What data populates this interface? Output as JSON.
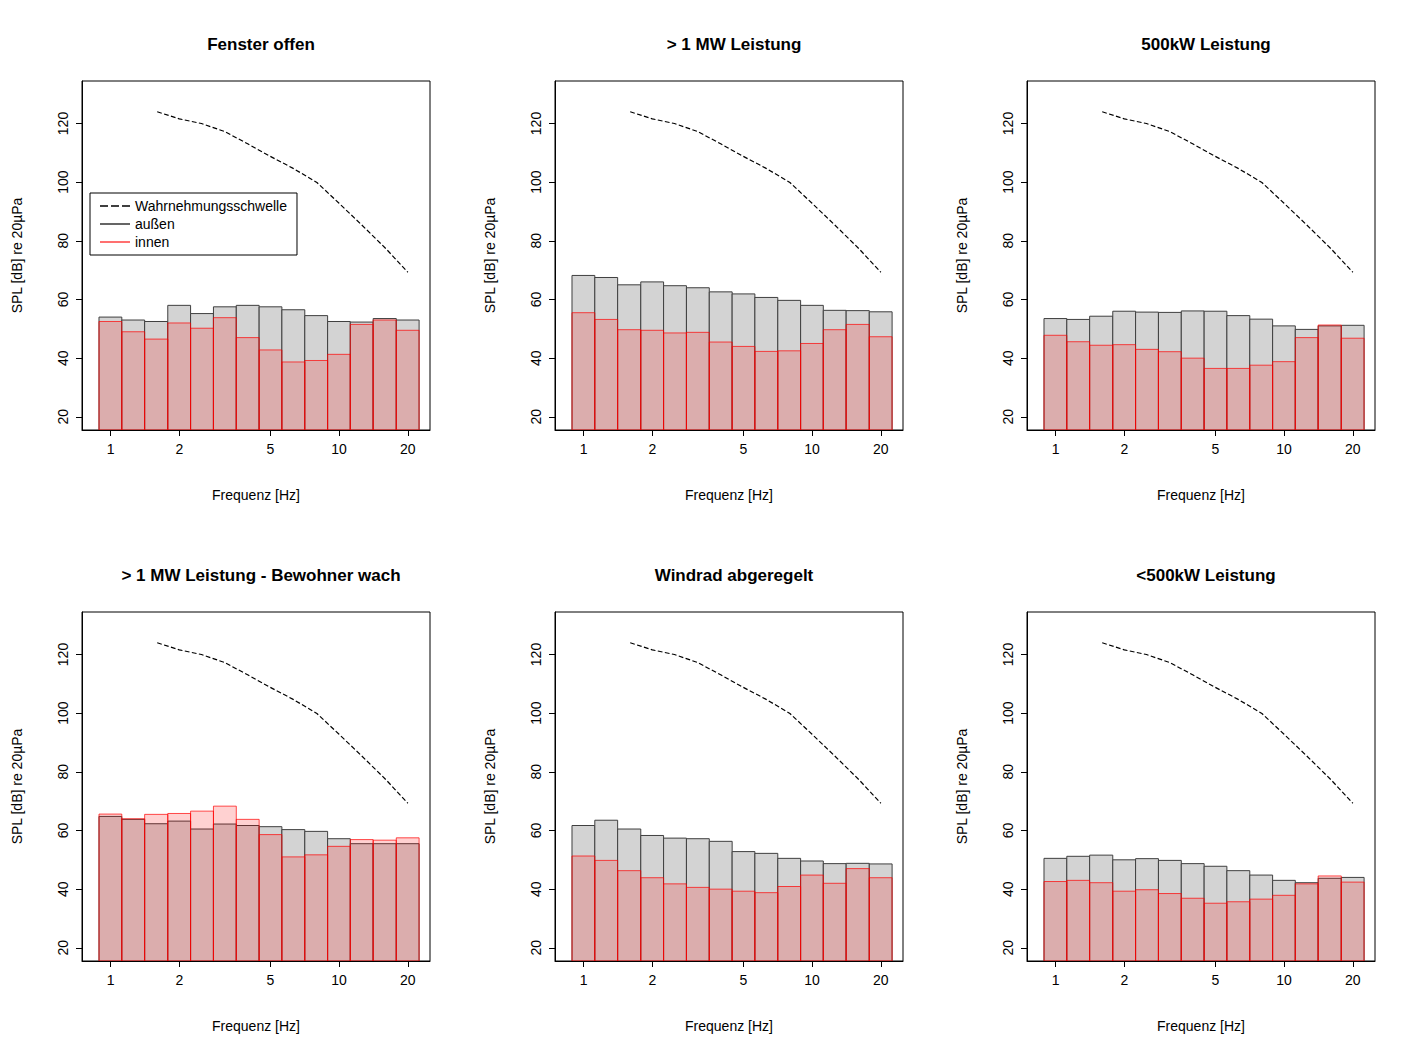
{
  "chart_data": [
    {
      "type": "histogram",
      "title": "Fenster offen",
      "xlabel": "Frequenz [Hz]",
      "ylabel": "SPL [dB] re 20µPa",
      "log": "x",
      "grid": false,
      "legend": "upper left",
      "xlim": [
        0.75,
        25
      ],
      "xticks": [
        1,
        2,
        5,
        10,
        20
      ],
      "ylim": [
        15.5,
        134.5
      ],
      "yticks": [
        20,
        40,
        60,
        80,
        100,
        120
      ],
      "bins": [
        0.89,
        1.12,
        1.41,
        1.78,
        2.24,
        2.82,
        3.55,
        4.47,
        5.62,
        7.08,
        8.91,
        11.2,
        14.1,
        17.8,
        22.4
      ],
      "series": [
        {
          "name": "Wahrnehmungsschwelle",
          "type": "line",
          "line_style": "dashed",
          "color": "#000000",
          "x": [
            1.6,
            2,
            2.5,
            3.15,
            4,
            5,
            6.3,
            8,
            10,
            12.5,
            16,
            20
          ],
          "values": [
            124,
            121.6,
            120,
            117.3,
            113,
            108.8,
            104.7,
            99.9,
            92.8,
            85.6,
            77.4,
            69.3
          ]
        },
        {
          "name": "außen",
          "type": "bar",
          "color": "#d3d3d3",
          "values": [
            54,
            53,
            52.5,
            58,
            55.2,
            57.5,
            58,
            57.5,
            56.5,
            54.5,
            52.5,
            52.3,
            53.5,
            53
          ]
        },
        {
          "name": "innen",
          "type": "bar",
          "color": "#ff0000",
          "values": [
            52.5,
            49,
            46.5,
            52,
            50.2,
            53.8,
            47,
            42.8,
            38.7,
            39.2,
            41.3,
            51.5,
            53,
            49.5
          ]
        }
      ]
    },
    {
      "type": "histogram",
      "title": "> 1 MW Leistung",
      "xlabel": "Frequenz [Hz]",
      "ylabel": "SPL [dB] re 20µPa",
      "log": "x",
      "grid": false,
      "xlim": [
        0.75,
        25
      ],
      "xticks": [
        1,
        2,
        5,
        10,
        20
      ],
      "ylim": [
        15.5,
        134.5
      ],
      "yticks": [
        20,
        40,
        60,
        80,
        100,
        120
      ],
      "bins": [
        0.89,
        1.12,
        1.41,
        1.78,
        2.24,
        2.82,
        3.55,
        4.47,
        5.62,
        7.08,
        8.91,
        11.2,
        14.1,
        17.8,
        22.4
      ],
      "series": [
        {
          "name": "Wahrnehmungsschwelle",
          "type": "line",
          "line_style": "dashed",
          "color": "#000000",
          "x": [
            1.6,
            2,
            2.5,
            3.15,
            4,
            5,
            6.3,
            8,
            10,
            12.5,
            16,
            20
          ],
          "values": [
            124,
            121.6,
            120,
            117.3,
            113,
            108.8,
            104.7,
            99.9,
            92.8,
            85.6,
            77.4,
            69.3
          ]
        },
        {
          "name": "außen",
          "type": "bar",
          "color": "#d3d3d3",
          "values": [
            68.2,
            67.5,
            65,
            66,
            64.7,
            64,
            62.6,
            61.9,
            60.7,
            59.7,
            58,
            56.3,
            56.2,
            55.8
          ]
        },
        {
          "name": "innen",
          "type": "bar",
          "color": "#ff0000",
          "values": [
            55.5,
            53.2,
            49.7,
            49.5,
            48.6,
            48.8,
            45.5,
            44,
            42.3,
            42.5,
            45,
            49.7,
            51.5,
            47.3
          ]
        }
      ]
    },
    {
      "type": "histogram",
      "title": "500kW Leistung",
      "xlabel": "Frequenz [Hz]",
      "ylabel": "SPL [dB] re 20µPa",
      "log": "x",
      "grid": false,
      "xlim": [
        0.75,
        25
      ],
      "xticks": [
        1,
        2,
        5,
        10,
        20
      ],
      "ylim": [
        15.5,
        134.5
      ],
      "yticks": [
        20,
        40,
        60,
        80,
        100,
        120
      ],
      "bins": [
        0.89,
        1.12,
        1.41,
        1.78,
        2.24,
        2.82,
        3.55,
        4.47,
        5.62,
        7.08,
        8.91,
        11.2,
        14.1,
        17.8,
        22.4
      ],
      "series": [
        {
          "name": "Wahrnehmungsschwelle",
          "type": "line",
          "line_style": "dashed",
          "color": "#000000",
          "x": [
            1.6,
            2,
            2.5,
            3.15,
            4,
            5,
            6.3,
            8,
            10,
            12.5,
            16,
            20
          ],
          "values": [
            124,
            121.6,
            120,
            117.3,
            113,
            108.8,
            104.7,
            99.9,
            92.8,
            85.6,
            77.4,
            69.3
          ]
        },
        {
          "name": "außen",
          "type": "bar",
          "color": "#d3d3d3",
          "values": [
            53.5,
            53.2,
            54.3,
            56,
            55.7,
            55.6,
            56.1,
            56,
            54.5,
            53.3,
            51,
            49.8,
            51,
            51.2
          ]
        },
        {
          "name": "innen",
          "type": "bar",
          "color": "#ff0000",
          "values": [
            47.8,
            45.6,
            44.4,
            44.6,
            43,
            42.2,
            40,
            36.5,
            36.5,
            37.6,
            38.8,
            47,
            51.3,
            46.8
          ]
        }
      ]
    },
    {
      "type": "histogram",
      "title": "> 1 MW Leistung - Bewohner wach",
      "xlabel": "Frequenz [Hz]",
      "ylabel": "SPL [dB] re 20µPa",
      "log": "x",
      "grid": false,
      "xlim": [
        0.75,
        25
      ],
      "xticks": [
        1,
        2,
        5,
        10,
        20
      ],
      "ylim": [
        15.5,
        134.5
      ],
      "yticks": [
        20,
        40,
        60,
        80,
        100,
        120
      ],
      "bins": [
        0.89,
        1.12,
        1.41,
        1.78,
        2.24,
        2.82,
        3.55,
        4.47,
        5.62,
        7.08,
        8.91,
        11.2,
        14.1,
        17.8,
        22.4
      ],
      "series": [
        {
          "name": "Wahrnehmungsschwelle",
          "type": "line",
          "line_style": "dashed",
          "color": "#000000",
          "x": [
            1.6,
            2,
            2.5,
            3.15,
            4,
            5,
            6.3,
            8,
            10,
            12.5,
            16,
            20
          ],
          "values": [
            124,
            121.6,
            120,
            117.3,
            113,
            108.8,
            104.7,
            99.9,
            92.8,
            85.6,
            77.4,
            69.3
          ]
        },
        {
          "name": "außen",
          "type": "bar",
          "color": "#d3d3d3",
          "values": [
            64.8,
            63.8,
            62.3,
            63.2,
            60.5,
            62.2,
            61.7,
            61.3,
            60.3,
            59.7,
            57.2,
            55.5,
            55.5,
            55.5
          ]
        },
        {
          "name": "innen",
          "type": "bar",
          "color": "#ff0000",
          "values": [
            65.6,
            64,
            65.5,
            65.8,
            66.6,
            68.3,
            63.8,
            58.6,
            51,
            51.7,
            54.6,
            56.9,
            56.7,
            57.5
          ]
        }
      ]
    },
    {
      "type": "histogram",
      "title": "Windrad abgeregelt",
      "xlabel": "Frequenz [Hz]",
      "ylabel": "SPL [dB] re 20µPa",
      "log": "x",
      "grid": false,
      "xlim": [
        0.75,
        25
      ],
      "xticks": [
        1,
        2,
        5,
        10,
        20
      ],
      "ylim": [
        15.5,
        134.5
      ],
      "yticks": [
        20,
        40,
        60,
        80,
        100,
        120
      ],
      "bins": [
        0.89,
        1.12,
        1.41,
        1.78,
        2.24,
        2.82,
        3.55,
        4.47,
        5.62,
        7.08,
        8.91,
        11.2,
        14.1,
        17.8,
        22.4
      ],
      "series": [
        {
          "name": "Wahrnehmungsschwelle",
          "type": "line",
          "line_style": "dashed",
          "color": "#000000",
          "x": [
            1.6,
            2,
            2.5,
            3.15,
            4,
            5,
            6.3,
            8,
            10,
            12.5,
            16,
            20
          ],
          "values": [
            124,
            121.6,
            120,
            117.3,
            113,
            108.8,
            104.7,
            99.9,
            92.8,
            85.6,
            77.4,
            69.3
          ]
        },
        {
          "name": "außen",
          "type": "bar",
          "color": "#d3d3d3",
          "values": [
            61.7,
            63.5,
            60.5,
            58.3,
            57.4,
            57.2,
            56.3,
            52.8,
            52.2,
            50.5,
            49.6,
            48.7,
            48.8,
            48.6
          ]
        },
        {
          "name": "innen",
          "type": "bar",
          "color": "#ff0000",
          "values": [
            51.3,
            49.8,
            46.3,
            43.9,
            41.8,
            40.6,
            40,
            39.3,
            38.8,
            40.9,
            44.8,
            42,
            47,
            43.9
          ]
        }
      ]
    },
    {
      "type": "histogram",
      "title": "<500kW Leistung",
      "xlabel": "Frequenz [Hz]",
      "ylabel": "SPL [dB] re 20µPa",
      "log": "x",
      "grid": false,
      "xlim": [
        0.75,
        25
      ],
      "xticks": [
        1,
        2,
        5,
        10,
        20
      ],
      "ylim": [
        15.5,
        134.5
      ],
      "yticks": [
        20,
        40,
        60,
        80,
        100,
        120
      ],
      "bins": [
        0.89,
        1.12,
        1.41,
        1.78,
        2.24,
        2.82,
        3.55,
        4.47,
        5.62,
        7.08,
        8.91,
        11.2,
        14.1,
        17.8,
        22.4
      ],
      "series": [
        {
          "name": "Wahrnehmungsschwelle",
          "type": "line",
          "line_style": "dashed",
          "color": "#000000",
          "x": [
            1.6,
            2,
            2.5,
            3.15,
            4,
            5,
            6.3,
            8,
            10,
            12.5,
            16,
            20
          ],
          "values": [
            124,
            121.6,
            120,
            117.3,
            113,
            108.8,
            104.7,
            99.9,
            92.8,
            85.6,
            77.4,
            69.3
          ]
        },
        {
          "name": "außen",
          "type": "bar",
          "color": "#d3d3d3",
          "values": [
            50.5,
            51.2,
            51.6,
            50,
            50.4,
            49.8,
            48.7,
            47.8,
            46.3,
            44.8,
            43,
            42.2,
            43.7,
            44
          ]
        },
        {
          "name": "innen",
          "type": "bar",
          "color": "#ff0000",
          "values": [
            42.6,
            43,
            42.2,
            39.3,
            39.8,
            38.5,
            36.9,
            35.2,
            35.7,
            36.6,
            37.9,
            41.8,
            44.5,
            42.4
          ]
        }
      ]
    }
  ]
}
